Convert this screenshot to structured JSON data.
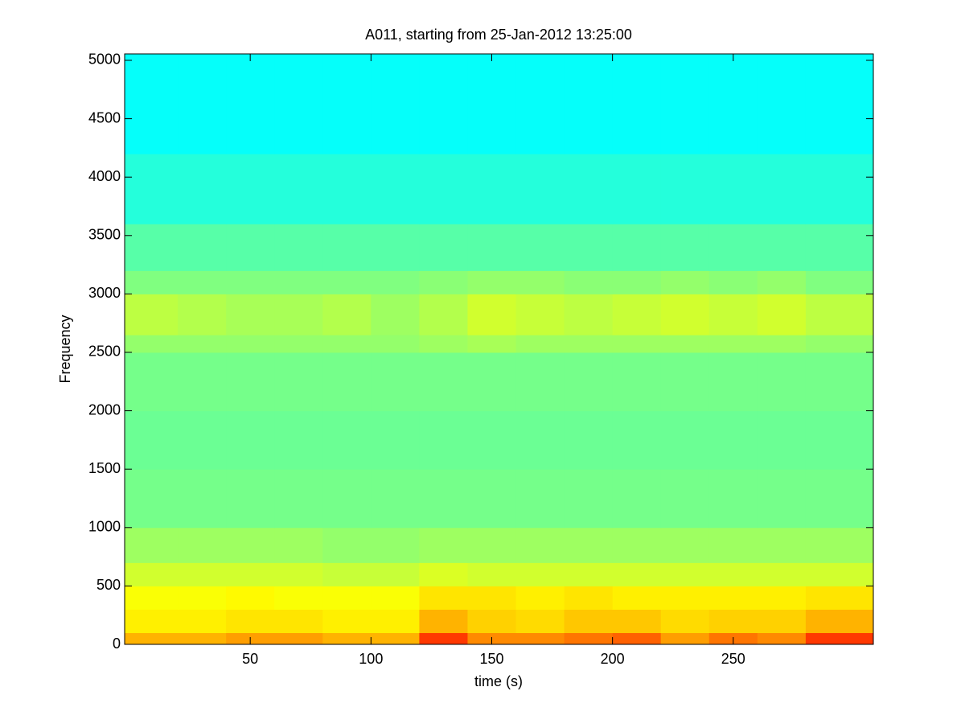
{
  "chart_data": {
    "type": "spectrogram",
    "title": "A011, starting from 25-Jan-2012 13:25:00",
    "x_label": "time (s)",
    "y_label": "Frequency",
    "xlim": [
      -2,
      308
    ],
    "ylim": [
      0,
      5055
    ],
    "xticks": [
      50,
      100,
      150,
      200,
      250
    ],
    "yticks": [
      0,
      500,
      1000,
      1500,
      2000,
      2500,
      3000,
      3500,
      4000,
      4500,
      5000
    ],
    "colormap": "jet",
    "clim": [
      0,
      1
    ],
    "xbins": [
      -2,
      20,
      40,
      60,
      80,
      100,
      120,
      140,
      160,
      180,
      200,
      220,
      240,
      260,
      280,
      308
    ],
    "ybins": [
      0,
      100,
      300,
      500,
      700,
      1000,
      1500,
      2000,
      2500,
      2650,
      3000,
      3200,
      3600,
      4200,
      5055
    ],
    "z": [
      [
        0.7,
        0.7,
        0.72,
        0.72,
        0.7,
        0.7,
        0.82,
        0.74,
        0.74,
        0.76,
        0.78,
        0.72,
        0.76,
        0.74,
        0.82
      ],
      [
        0.64,
        0.64,
        0.65,
        0.65,
        0.64,
        0.64,
        0.7,
        0.67,
        0.66,
        0.68,
        0.68,
        0.66,
        0.67,
        0.67,
        0.7
      ],
      [
        0.62,
        0.62,
        0.63,
        0.62,
        0.62,
        0.62,
        0.65,
        0.65,
        0.64,
        0.65,
        0.64,
        0.64,
        0.64,
        0.64,
        0.65
      ],
      [
        0.58,
        0.58,
        0.58,
        0.58,
        0.57,
        0.57,
        0.59,
        0.58,
        0.58,
        0.58,
        0.58,
        0.58,
        0.58,
        0.58,
        0.58
      ],
      [
        0.53,
        0.53,
        0.53,
        0.53,
        0.52,
        0.52,
        0.53,
        0.53,
        0.53,
        0.53,
        0.53,
        0.53,
        0.53,
        0.53,
        0.53
      ],
      [
        0.49,
        0.49,
        0.49,
        0.49,
        0.49,
        0.49,
        0.49,
        0.49,
        0.49,
        0.49,
        0.49,
        0.49,
        0.49,
        0.49,
        0.49
      ],
      [
        0.48,
        0.48,
        0.48,
        0.48,
        0.48,
        0.48,
        0.48,
        0.48,
        0.48,
        0.48,
        0.48,
        0.48,
        0.48,
        0.48,
        0.48
      ],
      [
        0.49,
        0.49,
        0.49,
        0.49,
        0.49,
        0.49,
        0.49,
        0.49,
        0.49,
        0.49,
        0.49,
        0.49,
        0.49,
        0.49,
        0.49
      ],
      [
        0.52,
        0.52,
        0.52,
        0.52,
        0.52,
        0.52,
        0.53,
        0.54,
        0.53,
        0.53,
        0.53,
        0.53,
        0.53,
        0.53,
        0.52
      ],
      [
        0.56,
        0.55,
        0.54,
        0.54,
        0.55,
        0.53,
        0.55,
        0.58,
        0.57,
        0.56,
        0.57,
        0.58,
        0.57,
        0.58,
        0.56
      ],
      [
        0.5,
        0.5,
        0.5,
        0.5,
        0.5,
        0.5,
        0.51,
        0.52,
        0.52,
        0.51,
        0.51,
        0.52,
        0.51,
        0.52,
        0.5
      ],
      [
        0.46,
        0.46,
        0.46,
        0.46,
        0.46,
        0.46,
        0.46,
        0.46,
        0.46,
        0.46,
        0.46,
        0.46,
        0.46,
        0.46,
        0.46
      ],
      [
        0.41,
        0.41,
        0.41,
        0.41,
        0.41,
        0.41,
        0.41,
        0.41,
        0.41,
        0.41,
        0.41,
        0.41,
        0.41,
        0.41,
        0.41
      ],
      [
        0.38,
        0.38,
        0.38,
        0.38,
        0.38,
        0.38,
        0.38,
        0.38,
        0.38,
        0.38,
        0.38,
        0.38,
        0.38,
        0.38,
        0.38
      ]
    ]
  }
}
